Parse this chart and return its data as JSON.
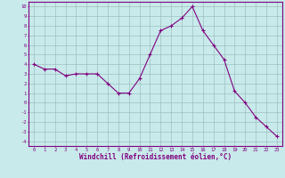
{
  "x": [
    0,
    1,
    2,
    3,
    4,
    5,
    6,
    7,
    8,
    9,
    10,
    11,
    12,
    13,
    14,
    15,
    16,
    17,
    18,
    19,
    20,
    21,
    22,
    23
  ],
  "y": [
    4.0,
    3.5,
    3.5,
    2.8,
    3.0,
    3.0,
    3.0,
    2.0,
    1.0,
    1.0,
    2.5,
    5.0,
    7.5,
    8.0,
    8.8,
    10.0,
    7.5,
    6.0,
    4.5,
    1.2,
    0.0,
    -1.5,
    -2.5,
    -3.5
  ],
  "ylim": [
    -4.5,
    10.5
  ],
  "xlim": [
    -0.5,
    23.5
  ],
  "yticks": [
    10,
    9,
    8,
    7,
    6,
    5,
    4,
    3,
    2,
    1,
    0,
    -1,
    -2,
    -3,
    -4
  ],
  "xticks": [
    0,
    1,
    2,
    3,
    4,
    5,
    6,
    7,
    8,
    9,
    10,
    11,
    12,
    13,
    14,
    15,
    16,
    17,
    18,
    19,
    20,
    21,
    22,
    23
  ],
  "xlabel": "Windchill (Refroidissement éolien,°C)",
  "line_color": "#800080",
  "marker": "+",
  "bg_color": "#c8eaea",
  "grid_color": "#9fbfbf",
  "title": ""
}
